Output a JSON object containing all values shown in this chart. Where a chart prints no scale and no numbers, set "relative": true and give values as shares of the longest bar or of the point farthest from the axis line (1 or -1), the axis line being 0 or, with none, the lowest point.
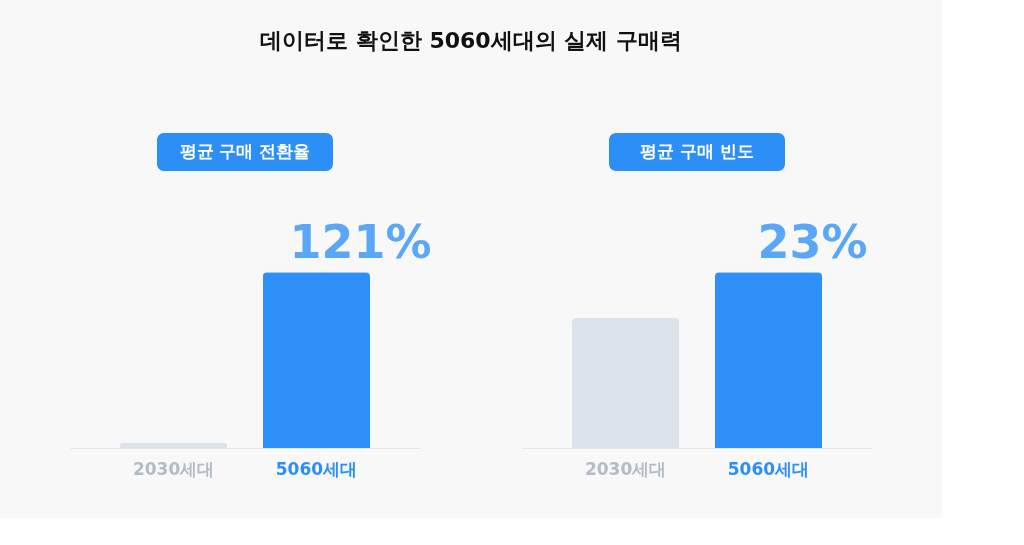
{
  "chart_data": [
    {
      "type": "bar",
      "title": "데이터로 확인한 5060세대의 실제 구매력",
      "subtitle": "평균 구매 전환율",
      "relative": true,
      "categories": [
        "2030세대",
        "5060세대"
      ],
      "values": [
        0.03,
        1
      ],
      "colors": [
        "#dde3ea",
        "#2f8ff8"
      ],
      "annotations": [
        "121%"
      ]
    },
    {
      "type": "bar",
      "subtitle": "평균 구매 빈도",
      "relative": true,
      "categories": [
        "2030세대",
        "5060세대"
      ],
      "values": [
        0.74,
        1
      ],
      "colors": [
        "#dde3ea",
        "#2f8ff8"
      ],
      "annotations": [
        "23%"
      ]
    }
  ]
}
